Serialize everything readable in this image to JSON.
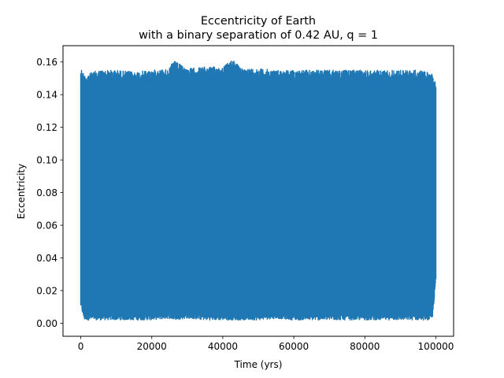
{
  "chart_data": {
    "type": "line",
    "title": "Eccentricity of Earth",
    "subtitle": "with a binary separation of 0.42 AU, q = 1",
    "xlabel": "Time (yrs)",
    "ylabel": "Eccentricity",
    "xlim": [
      -5000,
      105000
    ],
    "ylim": [
      -0.008,
      0.17
    ],
    "xticks": [
      0,
      20000,
      40000,
      60000,
      80000,
      100000
    ],
    "xtick_labels": [
      "0",
      "20000",
      "40000",
      "60000",
      "80000",
      "100000"
    ],
    "yticks": [
      0.0,
      0.02,
      0.04,
      0.06,
      0.08,
      0.1,
      0.12,
      0.14,
      0.16
    ],
    "ytick_labels": [
      "0.00",
      "0.02",
      "0.04",
      "0.06",
      "0.08",
      "0.10",
      "0.12",
      "0.14",
      "0.16"
    ],
    "grid": false,
    "series": [
      {
        "color": "#1f77b4",
        "x_start": 0,
        "x_end": 100000,
        "envelope": {
          "x": [
            0,
            1000,
            5000,
            10000,
            15000,
            20000,
            25000,
            26000,
            30000,
            35000,
            40000,
            43000,
            45000,
            50000,
            55000,
            60000,
            65000,
            70000,
            75000,
            80000,
            85000,
            90000,
            95000,
            99000,
            100000
          ],
          "upper": [
            0.157,
            0.152,
            0.155,
            0.155,
            0.154,
            0.155,
            0.156,
            0.161,
            0.156,
            0.157,
            0.157,
            0.162,
            0.156,
            0.156,
            0.155,
            0.155,
            0.155,
            0.155,
            0.155,
            0.155,
            0.155,
            0.155,
            0.155,
            0.153,
            0.148
          ],
          "lower": [
            0.01,
            0.002,
            0.002,
            0.002,
            0.002,
            0.002,
            0.003,
            0.002,
            0.003,
            0.002,
            0.002,
            0.002,
            0.002,
            0.002,
            0.003,
            0.002,
            0.002,
            0.002,
            0.002,
            0.002,
            0.002,
            0.002,
            0.002,
            0.002,
            0.025
          ]
        }
      }
    ]
  }
}
